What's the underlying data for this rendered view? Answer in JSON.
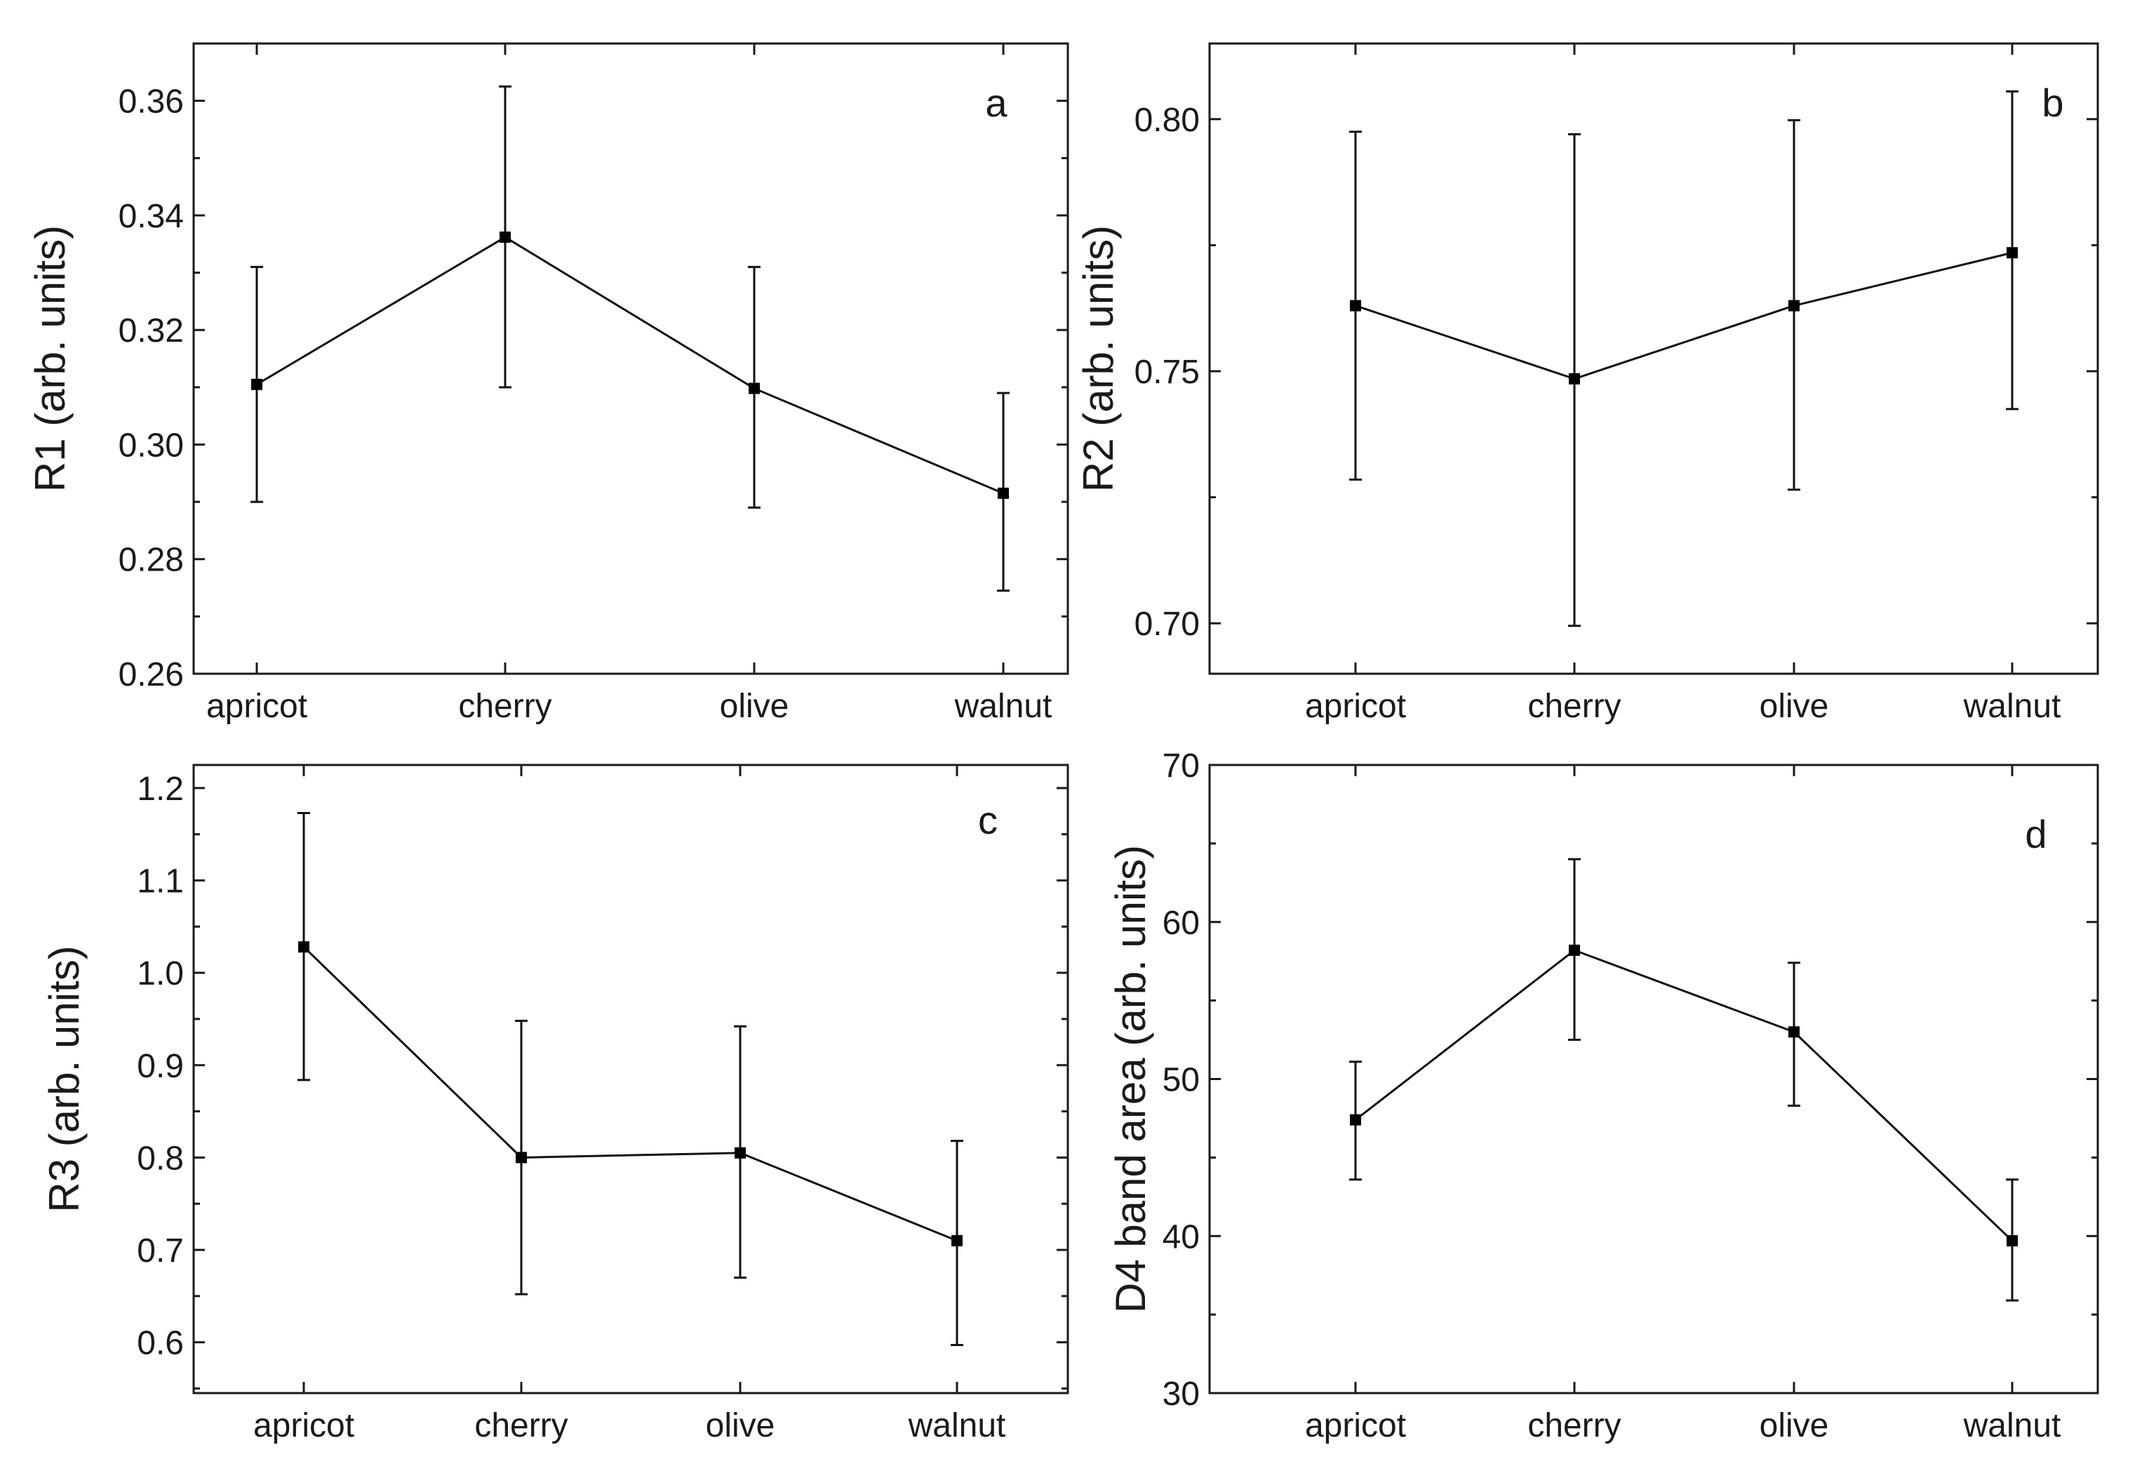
{
  "chart_data": [
    {
      "type": "line",
      "panel_label": "a",
      "categories": [
        "apricot",
        "cherry",
        "olive",
        "walnut"
      ],
      "values": [
        0.3105,
        0.3362,
        0.3098,
        0.2915
      ],
      "error_high": [
        0.331,
        0.3625,
        0.331,
        0.309
      ],
      "error_low": [
        0.29,
        0.31,
        0.289,
        0.2745
      ],
      "ylabel": "R1 (arb. units)",
      "xlabel": "",
      "ylim": [
        0.26,
        0.37
      ],
      "yticks": [
        0.26,
        0.28,
        0.3,
        0.32,
        0.34,
        0.36
      ],
      "ytick_labels": [
        "0.26",
        "0.28",
        "0.30",
        "0.32",
        "0.34",
        "0.36"
      ],
      "legend": "none"
    },
    {
      "type": "line",
      "panel_label": "b",
      "categories": [
        "apricot",
        "cherry",
        "olive",
        "walnut"
      ],
      "values": [
        0.763,
        0.7485,
        0.763,
        0.7735
      ],
      "error_high": [
        0.7975,
        0.797,
        0.7998,
        0.8055
      ],
      "error_low": [
        0.7285,
        0.6995,
        0.7265,
        0.7425
      ],
      "ylabel": "R2 (arb. units)",
      "xlabel": "",
      "ylim": [
        0.69,
        0.815
      ],
      "yticks": [
        0.7,
        0.75,
        0.8
      ],
      "ytick_labels": [
        "0.70",
        "0.75",
        "0.80"
      ],
      "legend": "none"
    },
    {
      "type": "line",
      "panel_label": "c",
      "categories": [
        "apricot",
        "cherry",
        "olive",
        "walnut"
      ],
      "values": [
        1.028,
        0.8,
        0.805,
        0.71
      ],
      "error_high": [
        1.173,
        0.948,
        0.942,
        0.818
      ],
      "error_low": [
        0.884,
        0.652,
        0.67,
        0.597
      ],
      "ylabel": "R3 (arb. units)",
      "xlabel": "",
      "ylim": [
        0.545,
        1.225
      ],
      "yticks": [
        0.6,
        0.7,
        0.8,
        0.9,
        1.0,
        1.1,
        1.2
      ],
      "ytick_labels": [
        "0.6",
        "0.7",
        "0.8",
        "0.9",
        "1.0",
        "1.1",
        "1.2"
      ],
      "legend": "none"
    },
    {
      "type": "line",
      "panel_label": "d",
      "categories": [
        "apricot",
        "cherry",
        "olive",
        "walnut"
      ],
      "values": [
        47.4,
        58.2,
        53.0,
        39.7
      ],
      "error_high": [
        51.1,
        64.0,
        57.4,
        43.6
      ],
      "error_low": [
        43.6,
        52.5,
        48.3,
        35.9
      ],
      "ylabel": "D4 band area (arb. units)",
      "xlabel": "",
      "ylim": [
        30,
        70
      ],
      "yticks": [
        30,
        40,
        50,
        60,
        70
      ],
      "ytick_labels": [
        "30",
        "40",
        "50",
        "60",
        "70"
      ],
      "legend": "none"
    }
  ]
}
